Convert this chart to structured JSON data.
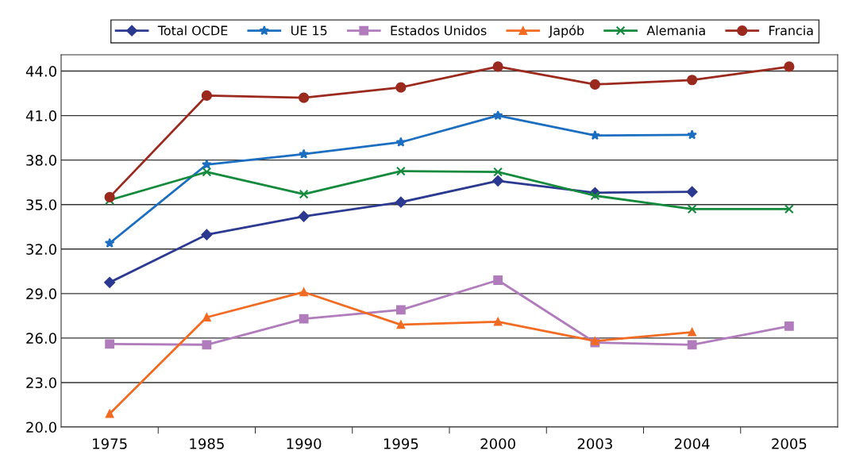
{
  "chart_data": {
    "type": "line",
    "categories": [
      "1975",
      "1985",
      "1990",
      "1995",
      "2000",
      "2003",
      "2004",
      "2005"
    ],
    "series": [
      {
        "name": "Total OCDE",
        "color": "#2b3990",
        "marker": "diamond",
        "values": [
          29.75,
          32.97,
          34.2,
          35.16,
          36.6,
          35.8,
          35.86,
          null
        ]
      },
      {
        "name": "UE 15",
        "color": "#1c6ec0",
        "marker": "star",
        "values": [
          32.4,
          37.7,
          38.4,
          39.2,
          41.0,
          39.66,
          39.7,
          null
        ]
      },
      {
        "name": "Estados Unidos",
        "color": "#b07cbb",
        "marker": "square",
        "values": [
          25.6,
          25.55,
          27.3,
          27.9,
          29.9,
          25.7,
          25.55,
          26.8
        ]
      },
      {
        "name": "Japób",
        "color": "#f26b22",
        "marker": "triangle",
        "values": [
          20.9,
          27.4,
          29.1,
          26.9,
          27.1,
          25.8,
          26.4,
          null
        ]
      },
      {
        "name": "Alemania",
        "color": "#138a3c",
        "marker": "cross",
        "values": [
          35.3,
          37.2,
          35.7,
          37.25,
          37.2,
          35.6,
          34.7,
          34.7
        ]
      },
      {
        "name": "Francia",
        "color": "#9b2a1e",
        "marker": "circle",
        "values": [
          35.5,
          42.35,
          42.2,
          42.9,
          44.3,
          43.1,
          43.4,
          44.3
        ]
      }
    ],
    "ylim": [
      20,
      45.1
    ],
    "yticks": [
      {
        "value": 20,
        "label": "20.0"
      },
      {
        "value": 23,
        "label": "23.0"
      },
      {
        "value": 26,
        "label": "26.0"
      },
      {
        "value": 29,
        "label": "29.0"
      },
      {
        "value": 32,
        "label": "32.0"
      },
      {
        "value": 35,
        "label": "35.0"
      },
      {
        "value": 38,
        "label": "38.0"
      },
      {
        "value": 41,
        "label": "41.0"
      },
      {
        "value": 44,
        "label": "44.0"
      }
    ],
    "grid": "y",
    "legend": "top"
  }
}
